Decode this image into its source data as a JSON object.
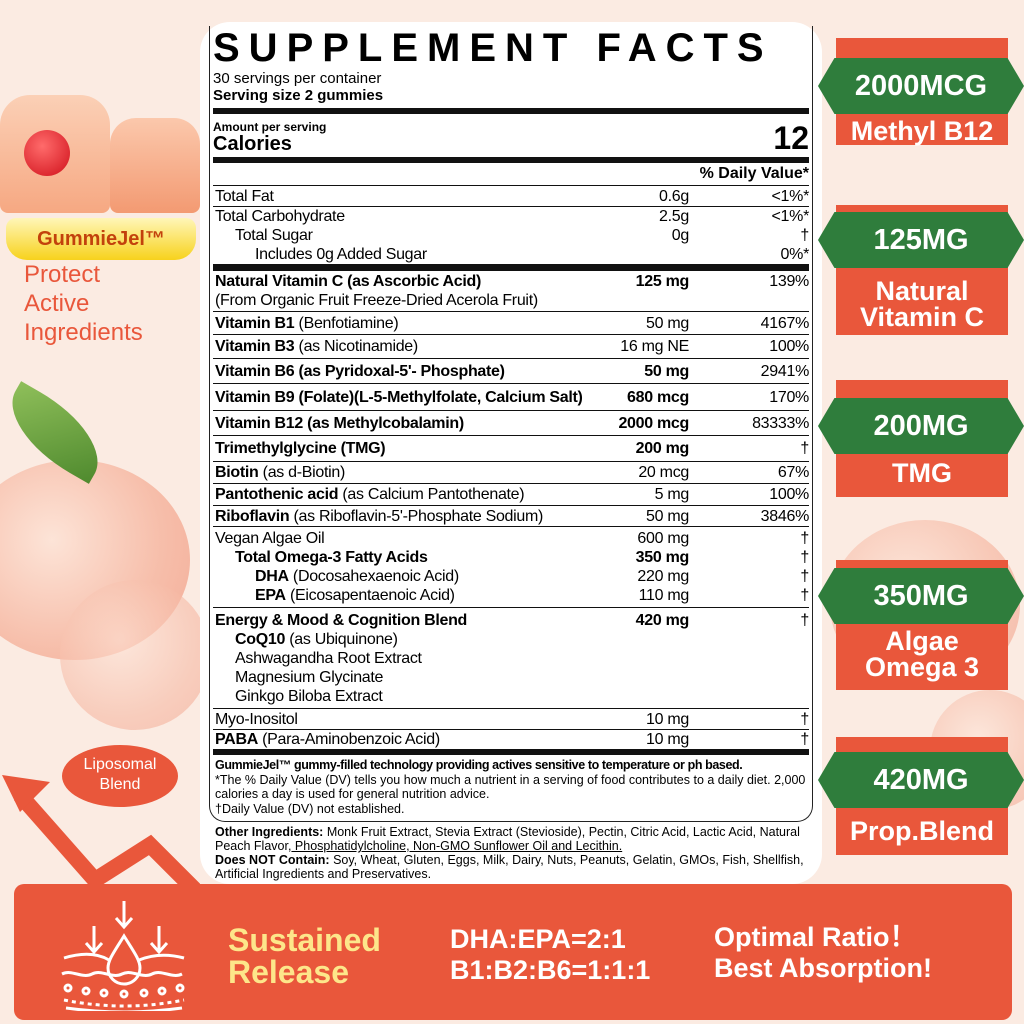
{
  "label": {
    "title": "SUPPLEMENT FACTS",
    "servings": "30 servings per container",
    "serving_size": "Serving size 2 gummies",
    "amount_per_serving": "Amount per serving",
    "calories_label": "Calories",
    "calories": "12",
    "dv_header": "% Daily Value*",
    "rows": [
      {
        "lines": [
          {
            "name": "Total Fat",
            "amount": "0.6g",
            "dv": "<1%*"
          }
        ]
      },
      {
        "lines": [
          {
            "name": "Total Carbohydrate",
            "amount": "2.5g",
            "dv": "<1%*"
          },
          {
            "name": "Total Sugar",
            "amount": "0g",
            "dv": "†",
            "indent": 1
          },
          {
            "name": "Includes 0g Added Sugar",
            "amount": "",
            "dv": "0%*",
            "indent": 2
          }
        ]
      },
      {
        "thick": true,
        "lines": [
          {
            "name": "Natural Vitamin C (as Ascorbic Acid)",
            "amount": "125 mg",
            "dv": "139%",
            "bold": true
          },
          {
            "name": "",
            "suffix": "(From Organic Fruit Freeze-Dried Acerola Fruit)",
            "amount": "",
            "dv": ""
          }
        ]
      },
      {
        "lines": [
          {
            "name": "Vitamin B1",
            "suffix": " (Benfotiamine)",
            "amount": "50 mg",
            "dv": "4167%"
          }
        ]
      },
      {
        "lines": [
          {
            "name": "Vitamin B3",
            "suffix": " (as Nicotinamide)",
            "amount": "16 mg NE",
            "dv": "100%"
          }
        ]
      },
      {
        "lines": [
          {
            "name": "Vitamin B6 (as Pyridoxal-5'- Phosphate)",
            "amount": "50 mg",
            "dv": "2941%",
            "bold": true
          }
        ]
      },
      {
        "lines": [
          {
            "name": "Vitamin B9 (Folate)(L-5-Methylfolate, Calcium Salt)",
            "amount": "680 mcg",
            "dv": "170%",
            "bold": true
          }
        ]
      },
      {
        "lines": [
          {
            "name": "Vitamin B12 (as Methylcobalamin)",
            "amount": "2000 mcg",
            "dv": "83333%",
            "bold": true
          }
        ]
      },
      {
        "lines": [
          {
            "name": "Trimethylglycine (TMG)",
            "amount": "200 mg",
            "dv": "†",
            "bold": true
          }
        ]
      },
      {
        "lines": [
          {
            "name": "Biotin",
            "suffix": " (as d-Biotin)",
            "amount": "20 mcg",
            "dv": "67%"
          }
        ]
      },
      {
        "lines": [
          {
            "name": "Pantothenic acid",
            "suffix": " (as Calcium Pantothenate)",
            "amount": "5 mg",
            "dv": "100%"
          }
        ]
      },
      {
        "lines": [
          {
            "name": "Riboflavin",
            "suffix": " (as Riboflavin-5'-Phosphate Sodium)",
            "amount": "50 mg",
            "dv": "3846%"
          }
        ]
      },
      {
        "lines": [
          {
            "name": "",
            "suffix": "Vegan Algae Oil",
            "amount": "600 mg",
            "dv": "†"
          },
          {
            "name": "Total Omega-3 Fatty Acids",
            "amount": "350 mg",
            "dv": "†",
            "indent": 1,
            "bold": true
          },
          {
            "name": "DHA",
            "suffix": " (Docosahexaenoic Acid)",
            "amount": "220 mg",
            "dv": "†",
            "indent": 2
          },
          {
            "name": "EPA",
            "suffix": " (Eicosapentaenoic Acid)",
            "amount": "110 mg",
            "dv": "†",
            "indent": 2
          }
        ]
      },
      {
        "lines": [
          {
            "name": "Energy & Mood & Cognition Blend",
            "amount": "420 mg",
            "dv": "†",
            "bold": true
          },
          {
            "name": "CoQ10",
            "suffix": " (as Ubiquinone)",
            "amount": "",
            "dv": "",
            "indent": 1
          },
          {
            "name": "Ashwagandha Root Extract",
            "amount": "",
            "dv": "",
            "indent": 1
          },
          {
            "name": "Magnesium Glycinate",
            "amount": "",
            "dv": "",
            "indent": 1
          },
          {
            "name": "Ginkgo Biloba Extract",
            "amount": "",
            "dv": "",
            "indent": 1
          }
        ]
      },
      {
        "lines": [
          {
            "name": "Myo-Inositol",
            "amount": "10 mg",
            "dv": "†"
          }
        ]
      },
      {
        "lines": [
          {
            "name": "PABA",
            "suffix": " (Para-Aminobenzoic Acid)",
            "amount": "10 mg",
            "dv": "†"
          }
        ]
      }
    ],
    "gummiejel_note": "GummieJel™ gummy-filled technology providing actives sensitive to temperature or ph based.",
    "dv_note": "*The % Daily Value (DV) tells you how much a nutrient in a serving of food contributes to a daily diet. 2,000 calories a day is used for general nutrition advice.",
    "dagger_note": "†Daily Value (DV) not established.",
    "other_label": "Other Ingredients:",
    "other_text": " Monk Fruit Extract, Stevia Extract (Stevioside), Pectin, Citric Acid, Lactic Acid, Natural Peach Flavor,",
    "other_underlined": " Phosphatidylcholine, Non-GMO Sunflower Oil and Lecithin.",
    "not_contain_label": "Does NOT Contain:",
    "not_contain_text": " Soy, Wheat, Gluten, Eggs, Milk, Dairy, Nuts, Peanuts, Gelatin, GMOs, Fish, Shellfish, Artificial Ingredients and Preservatives."
  },
  "left": {
    "gummiejel": "GummieJel™",
    "protect": [
      "Protect",
      "Active",
      "Ingredients"
    ],
    "liposomal": [
      "Liposomal",
      "Blend"
    ]
  },
  "badges": [
    {
      "amount": "2000MCG",
      "label": [
        "Methyl B12"
      ]
    },
    {
      "amount": "125MG",
      "label": [
        "Natural",
        "Vitamin C"
      ]
    },
    {
      "amount": "200MG",
      "label": [
        "TMG"
      ]
    },
    {
      "amount": "350MG",
      "label": [
        "Algae",
        "Omega 3"
      ]
    },
    {
      "amount": "420MG",
      "label": [
        "Prop.Blend"
      ]
    }
  ],
  "banner": {
    "sustained": [
      "Sustained",
      "Release"
    ],
    "ratios": [
      "DHA:EPA=2:1",
      "B1:B2:B6=1:1:1"
    ],
    "claims": [
      "Optimal Ratio！",
      "Best Absorption!"
    ]
  },
  "colors": {
    "accent": "#e9573b",
    "green": "#2f7d3c",
    "yellow_text": "#fde68a",
    "background": "#fbebe2"
  }
}
